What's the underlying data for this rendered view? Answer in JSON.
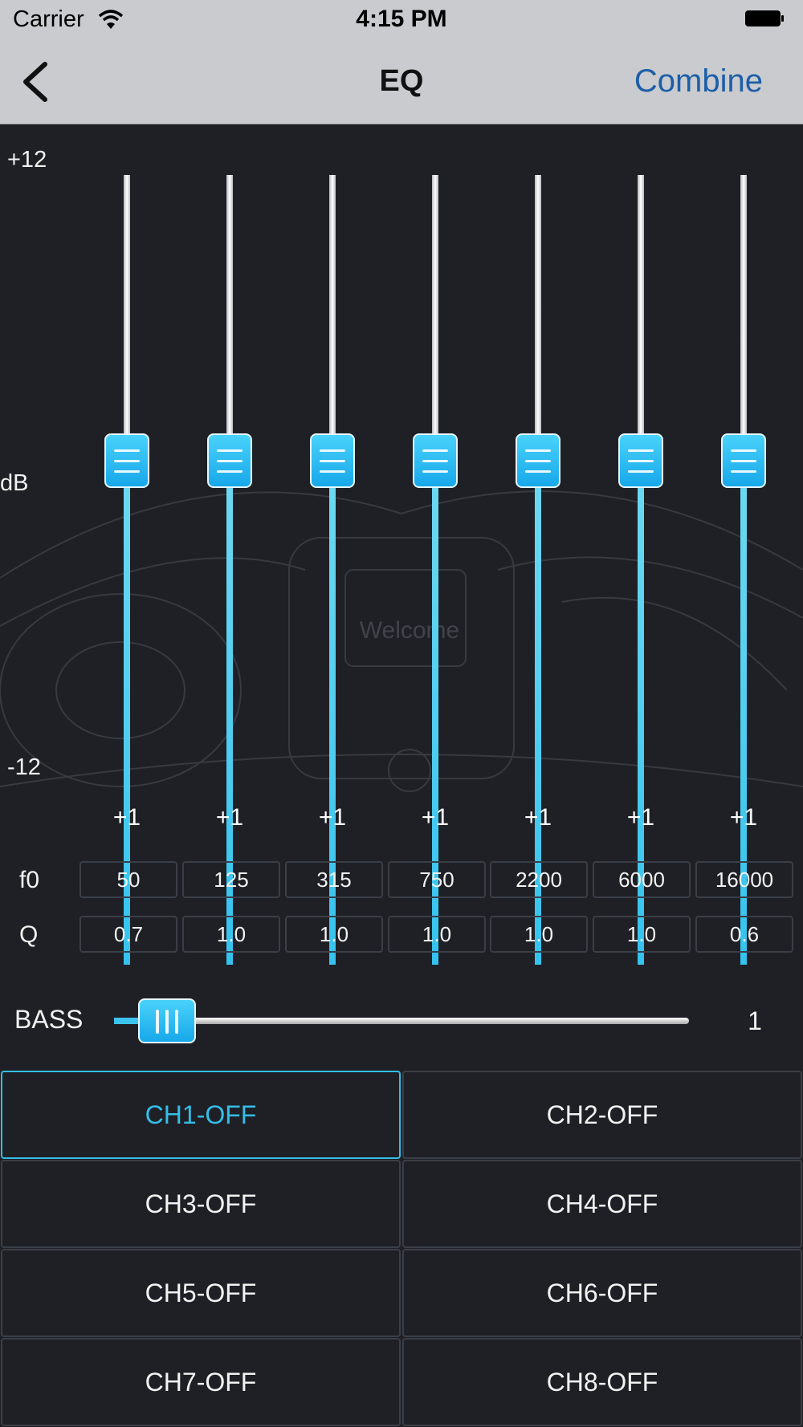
{
  "status_bar": {
    "carrier": "Carrier",
    "time": "4:15 PM"
  },
  "nav": {
    "title": "EQ",
    "combine_label": "Combine",
    "back_icon": "chevron-left-icon"
  },
  "background": {
    "welcome_text": "Welcome"
  },
  "eq": {
    "db_max": "+12",
    "db_unit": "dB",
    "db_min": "-12",
    "bands": [
      {
        "value": "+1",
        "f0": "50",
        "q": "0.7",
        "level_db": 1
      },
      {
        "value": "+1",
        "f0": "125",
        "q": "1.0",
        "level_db": 1
      },
      {
        "value": "+1",
        "f0": "315",
        "q": "1.0",
        "level_db": 1
      },
      {
        "value": "+1",
        "f0": "750",
        "q": "1.0",
        "level_db": 1
      },
      {
        "value": "+1",
        "f0": "2200",
        "q": "1.0",
        "level_db": 1
      },
      {
        "value": "+1",
        "f0": "6000",
        "q": "1.0",
        "level_db": 1
      },
      {
        "value": "+1",
        "f0": "16000",
        "q": "0.6",
        "level_db": 1
      }
    ],
    "f0_label": "f0",
    "q_label": "Q"
  },
  "bass": {
    "label": "BASS",
    "value": "1"
  },
  "channels": [
    {
      "label": "CH1-OFF",
      "active": true
    },
    {
      "label": "CH2-OFF",
      "active": false
    },
    {
      "label": "CH3-OFF",
      "active": false
    },
    {
      "label": "CH4-OFF",
      "active": false
    },
    {
      "label": "CH5-OFF",
      "active": false
    },
    {
      "label": "CH6-OFF",
      "active": false
    },
    {
      "label": "CH7-OFF",
      "active": false
    },
    {
      "label": "CH8-OFF",
      "active": false
    }
  ],
  "colors": {
    "accent": "#33bde8",
    "nav_link": "#1c5ea8",
    "background": "#1f2025",
    "bar": "#c9cbce"
  }
}
